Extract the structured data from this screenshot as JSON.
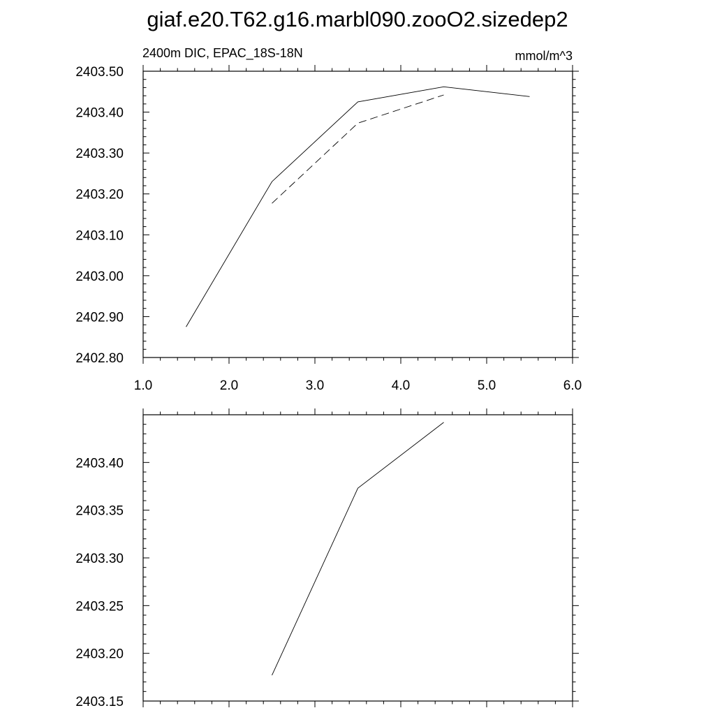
{
  "title": "giaf.e20.T62.g16.marbl090.zooO2.sizedep2",
  "chart_data": [
    {
      "type": "line",
      "left_label": "2400m DIC, EPAC_18S-18N",
      "right_label": "mmol/m^3",
      "xlim": [
        1.0,
        6.0
      ],
      "ylim": [
        2402.8,
        2403.5
      ],
      "x_ticks": [
        1.0,
        2.0,
        3.0,
        4.0,
        5.0,
        6.0
      ],
      "x_tick_labels": [
        "1.0",
        "2.0",
        "3.0",
        "4.0",
        "5.0",
        "6.0"
      ],
      "y_ticks": [
        2402.8,
        2402.9,
        2403.0,
        2403.1,
        2403.2,
        2403.3,
        2403.4,
        2403.5
      ],
      "y_tick_labels": [
        "2402.80",
        "2402.90",
        "2403.00",
        "2403.10",
        "2403.20",
        "2403.30",
        "2403.40",
        "2403.50"
      ],
      "series": [
        {
          "style": "solid",
          "color": "#000000",
          "x": [
            1.5,
            2.5,
            3.5,
            4.5,
            5.5
          ],
          "y": [
            2402.875,
            2403.23,
            2403.425,
            2403.462,
            2403.438
          ]
        },
        {
          "style": "dashed",
          "color": "#000000",
          "x": [
            2.5,
            3.5,
            4.5
          ],
          "y": [
            2403.177,
            2403.373,
            2403.442
          ]
        }
      ]
    },
    {
      "type": "line",
      "xlim": [
        1.0,
        6.0
      ],
      "ylim": [
        2403.15,
        2403.45
      ],
      "x_ticks": [
        1.0,
        2.0,
        3.0,
        4.0,
        5.0,
        6.0
      ],
      "x_tick_labels": [],
      "y_ticks": [
        2403.15,
        2403.2,
        2403.25,
        2403.3,
        2403.35,
        2403.4
      ],
      "y_tick_labels": [
        "2403.15",
        "2403.20",
        "2403.25",
        "2403.30",
        "2403.35",
        "2403.40"
      ],
      "series": [
        {
          "style": "solid",
          "color": "#000000",
          "x": [
            2.5,
            3.5,
            4.5
          ],
          "y": [
            2403.177,
            2403.373,
            2403.442
          ]
        }
      ]
    }
  ]
}
